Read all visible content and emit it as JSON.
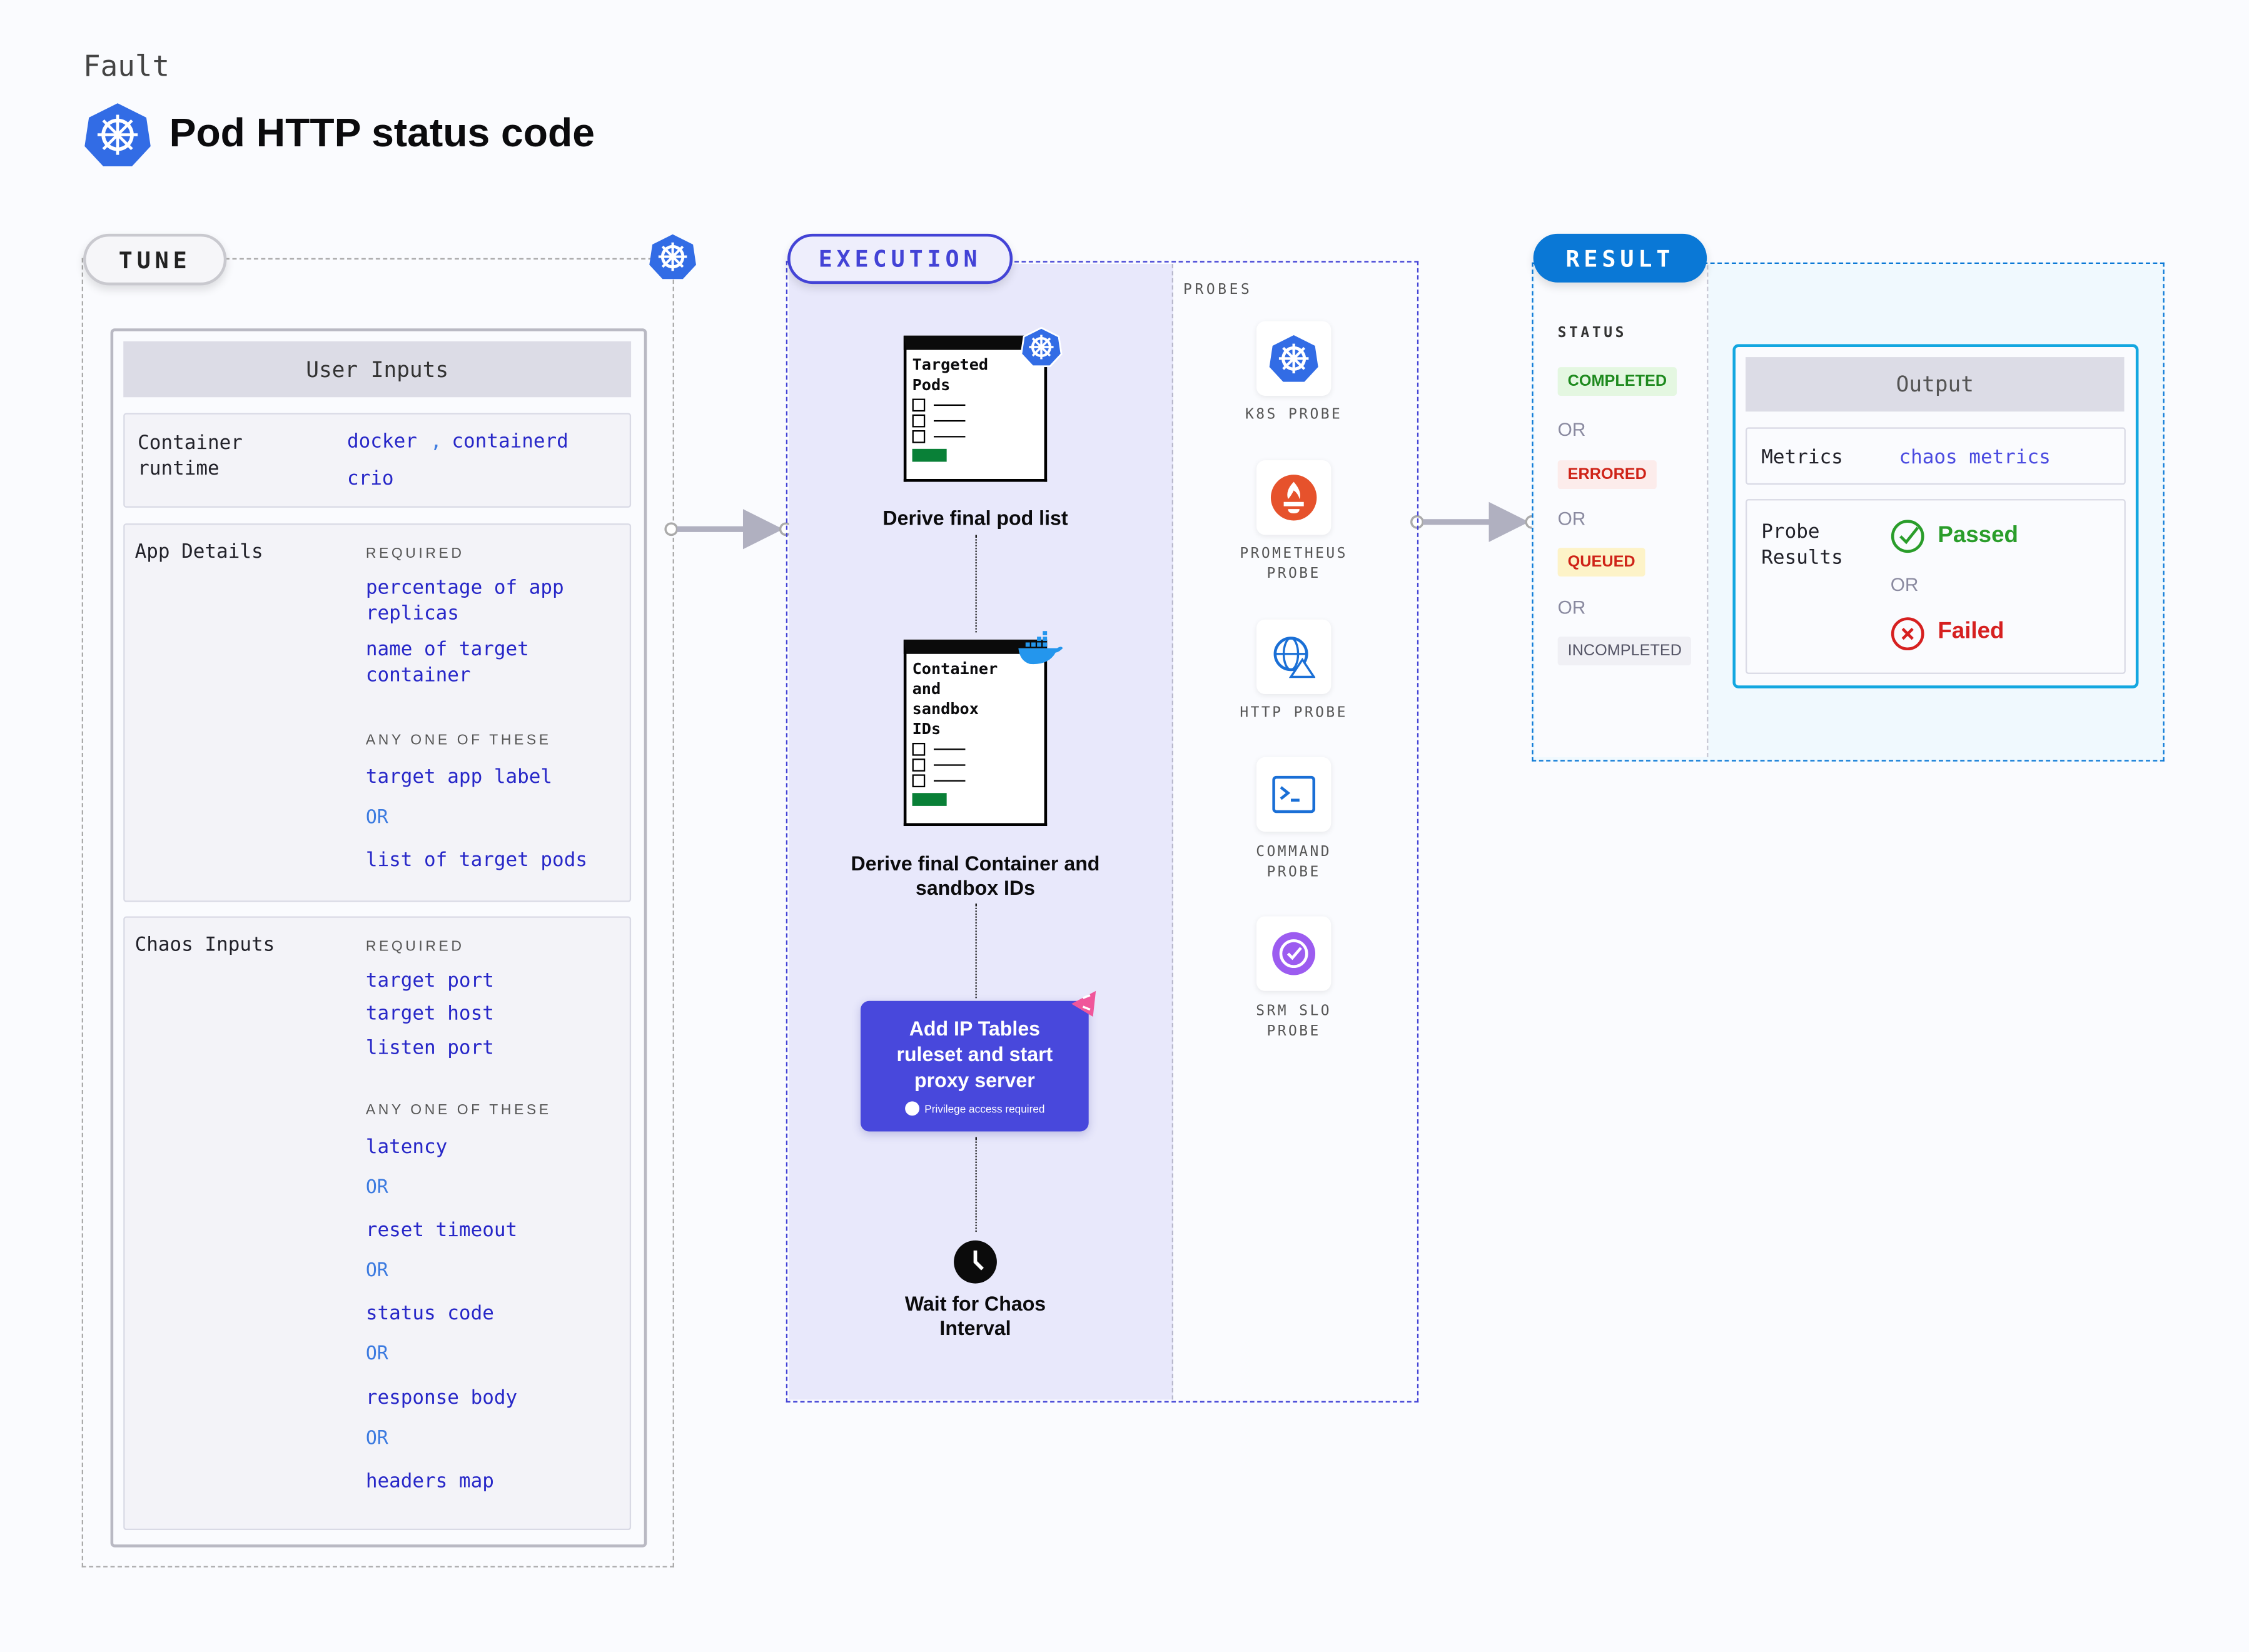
{
  "header": {
    "kind": "Fault",
    "title": "Pod HTTP status code"
  },
  "tune": {
    "label": "TUNE",
    "user_inputs_title": "User Inputs",
    "container_runtime": {
      "label": "Container runtime",
      "values": [
        "docker",
        ",",
        "containerd",
        "crio"
      ]
    },
    "app_details": {
      "label": "App Details",
      "required_caption": "REQUIRED",
      "required": [
        "percentage of app replicas",
        "name of target container"
      ],
      "any_caption": "ANY ONE OF THESE",
      "any": [
        "target app label",
        "list of target pods"
      ],
      "or": "OR"
    },
    "chaos_inputs": {
      "label": "Chaos Inputs",
      "required_caption": "REQUIRED",
      "required": [
        "target port",
        "target host",
        "listen port"
      ],
      "any_caption": "ANY ONE OF THESE",
      "any": [
        "latency",
        "reset timeout",
        "status code",
        "response body",
        "headers map"
      ],
      "or": "OR"
    }
  },
  "execution": {
    "label": "EXECUTION",
    "card1": {
      "title": "Targeted Pods",
      "caption": "Derive final pod list"
    },
    "card2": {
      "title": "Container and sandbox IDs",
      "caption": "Derive final Container and sandbox IDs"
    },
    "action": {
      "title": "Add IP Tables ruleset and start proxy server",
      "note": "Privilege access required",
      "color": "#4848dc"
    },
    "wait": {
      "caption": "Wait for Chaos Interval"
    },
    "probes_caption": "PROBES",
    "probes": [
      {
        "label": "K8S PROBE",
        "icon": "kubernetes-icon"
      },
      {
        "label": "PROMETHEUS PROBE",
        "icon": "prometheus-icon"
      },
      {
        "label": "HTTP PROBE",
        "icon": "globe-warning-icon"
      },
      {
        "label": "COMMAND PROBE",
        "icon": "terminal-icon"
      },
      {
        "label": "SRM SLO PROBE",
        "icon": "slo-icon"
      }
    ]
  },
  "result": {
    "label": "RESULT",
    "status_caption": "STATUS",
    "or": "OR",
    "statuses": [
      {
        "label": "COMPLETED",
        "color": "#1e8a1e",
        "bg": "#e4f7e1"
      },
      {
        "label": "ERRORED",
        "color": "#cf2318",
        "bg": "#fceceb"
      },
      {
        "label": "QUEUED",
        "color": "#cf2318",
        "bg": "#fdf3c8"
      },
      {
        "label": "INCOMPLETED",
        "color": "#555566",
        "bg": "#f0f0f5"
      }
    ],
    "output": {
      "title": "Output",
      "metrics_label": "Metrics",
      "metrics_value": "chaos metrics",
      "probe_results_label": "Probe Results",
      "passed": "Passed",
      "failed": "Failed",
      "or": "OR"
    }
  },
  "colors": {
    "tune": "#aaaaaa",
    "execution": "#4343d6",
    "result": "#0a78d6",
    "output_border": "#13a7e0"
  }
}
